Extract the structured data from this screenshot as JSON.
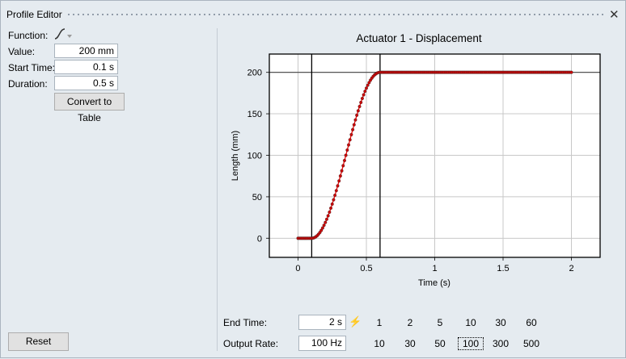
{
  "window": {
    "title": "Profile Editor",
    "close_icon": "close-icon"
  },
  "left_panel": {
    "function_label": "Function:",
    "function_icon": "s-curve-icon",
    "value_label": "Value:",
    "value": "200 mm",
    "start_time_label": "Start Time:",
    "start_time": "0.1 s",
    "duration_label": "Duration:",
    "duration": "0.5 s",
    "convert_button": "Convert to Table",
    "reset_button": "Reset"
  },
  "bottom": {
    "end_time_label": "End Time:",
    "end_time": "2 s",
    "end_time_options": [
      "1",
      "2",
      "5",
      "10",
      "30",
      "60"
    ],
    "output_rate_label": "Output Rate:",
    "output_rate": "100 Hz",
    "output_rate_options": [
      "10",
      "30",
      "50",
      "100",
      "300",
      "500"
    ],
    "output_rate_selected": "100"
  },
  "chart_data": {
    "type": "line",
    "title": "Actuator 1 - Displacement",
    "xlabel": "Time (s)",
    "ylabel": "Length (mm)",
    "xlim": [
      -0.21,
      2.21
    ],
    "ylim": [
      -23,
      222
    ],
    "xticks": [
      0,
      0.5,
      1,
      1.5,
      2
    ],
    "xtick_labels": [
      "0",
      "0.5",
      "1",
      "1.5",
      "2"
    ],
    "yticks": [
      0,
      50,
      100,
      150,
      200
    ],
    "ytick_labels": [
      "0",
      "50",
      "100",
      "150",
      "200"
    ],
    "grid": true,
    "markers": true,
    "colors": {
      "line": "#ff0000",
      "marker": "#cc0000",
      "marker_edge": "#333333"
    },
    "reference_lines": {
      "vertical_x": [
        0.1,
        0.6
      ],
      "horizontal_y": [
        200
      ]
    },
    "x_start": 0,
    "x_step": 0.01,
    "y": [
      0,
      0,
      0,
      0,
      0,
      0,
      0,
      0,
      0,
      0,
      0,
      0.2,
      0.8,
      1.8,
      3.1,
      4.9,
      7.0,
      9.5,
      12.4,
      15.6,
      19.1,
      22.9,
      27.1,
      31.5,
      36.3,
      41.2,
      46.4,
      51.8,
      57.4,
      63.2,
      69.1,
      75.1,
      81.3,
      87.5,
      93.7,
      100,
      106.3,
      112.5,
      118.7,
      124.9,
      130.9,
      136.8,
      142.6,
      148.2,
      153.6,
      158.8,
      163.7,
      168.5,
      172.9,
      177.1,
      180.9,
      184.4,
      187.6,
      190.5,
      193.0,
      195.1,
      196.9,
      198.2,
      199.2,
      199.8,
      200,
      200,
      200,
      200,
      200,
      200,
      200,
      200,
      200,
      200,
      200,
      200,
      200,
      200,
      200,
      200,
      200,
      200,
      200,
      200,
      200,
      200,
      200,
      200,
      200,
      200,
      200,
      200,
      200,
      200,
      200,
      200,
      200,
      200,
      200,
      200,
      200,
      200,
      200,
      200,
      200,
      200,
      200,
      200,
      200,
      200,
      200,
      200,
      200,
      200,
      200,
      200,
      200,
      200,
      200,
      200,
      200,
      200,
      200,
      200,
      200,
      200,
      200,
      200,
      200,
      200,
      200,
      200,
      200,
      200,
      200,
      200,
      200,
      200,
      200,
      200,
      200,
      200,
      200,
      200,
      200,
      200,
      200,
      200,
      200,
      200,
      200,
      200,
      200,
      200,
      200,
      200,
      200,
      200,
      200,
      200,
      200,
      200,
      200,
      200,
      200,
      200,
      200,
      200,
      200,
      200,
      200,
      200,
      200,
      200,
      200,
      200,
      200,
      200,
      200,
      200,
      200,
      200,
      200,
      200,
      200,
      200,
      200,
      200,
      200,
      200,
      200,
      200,
      200,
      200,
      200,
      200,
      200,
      200,
      200,
      200,
      200,
      200,
      200,
      200,
      200
    ]
  }
}
